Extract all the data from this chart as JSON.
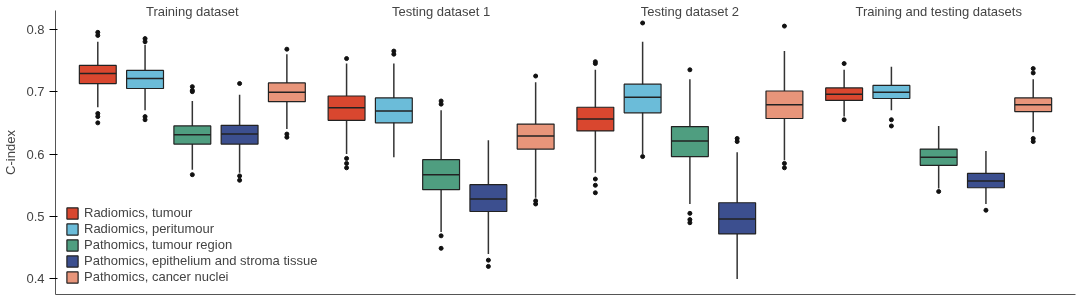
{
  "chart_data": {
    "type": "box",
    "ylabel": "C-index",
    "categories": [
      "Training dataset",
      "Testing dataset 1",
      "Testing dataset 2",
      "Training and testing datasets"
    ],
    "ylim": [
      0.375,
      0.83
    ],
    "yticks": [
      0.4,
      0.5,
      0.6,
      0.7,
      0.8
    ],
    "grid": false,
    "legend": "bottom left",
    "series": [
      {
        "name": "Radiomics, tumour",
        "color": "#d9472f",
        "boxes": [
          {
            "low": 0.675,
            "q1": 0.713,
            "median": 0.729,
            "q3": 0.742,
            "high": 0.78,
            "outliers": [
              0.795,
              0.79,
              0.665,
              0.66,
              0.65
            ]
          },
          {
            "low": 0.6,
            "q1": 0.654,
            "median": 0.674,
            "q3": 0.693,
            "high": 0.745,
            "outliers": [
              0.753,
              0.593,
              0.585,
              0.578
            ]
          },
          {
            "low": 0.57,
            "q1": 0.637,
            "median": 0.656,
            "q3": 0.675,
            "high": 0.735,
            "outliers": [
              0.748,
              0.745,
              0.56,
              0.55,
              0.538
            ]
          },
          {
            "low": 0.66,
            "q1": 0.686,
            "median": 0.696,
            "q3": 0.706,
            "high": 0.735,
            "outliers": [
              0.745,
              0.655
            ]
          }
        ]
      },
      {
        "name": "Radiomics, peritumour",
        "color": "#6bbcd9",
        "boxes": [
          {
            "low": 0.67,
            "q1": 0.705,
            "median": 0.721,
            "q3": 0.734,
            "high": 0.775,
            "outliers": [
              0.785,
              0.78,
              0.66,
              0.655
            ]
          },
          {
            "low": 0.595,
            "q1": 0.65,
            "median": 0.669,
            "q3": 0.69,
            "high": 0.745,
            "outliers": [
              0.765,
              0.76
            ]
          },
          {
            "low": 0.6,
            "q1": 0.666,
            "median": 0.691,
            "q3": 0.712,
            "high": 0.78,
            "outliers": [
              0.81,
              0.596
            ]
          },
          {
            "low": 0.67,
            "q1": 0.689,
            "median": 0.699,
            "q3": 0.71,
            "high": 0.74,
            "outliers": [
              0.655,
              0.645
            ]
          }
        ]
      },
      {
        "name": "Pathomics, tumour region",
        "color": "#4f9e80",
        "boxes": [
          {
            "low": 0.575,
            "q1": 0.616,
            "median": 0.631,
            "q3": 0.645,
            "high": 0.685,
            "outliers": [
              0.708,
              0.702,
              0.7,
              0.567
            ]
          },
          {
            "low": 0.475,
            "q1": 0.543,
            "median": 0.567,
            "q3": 0.591,
            "high": 0.67,
            "outliers": [
              0.685,
              0.68,
              0.469,
              0.449
            ]
          },
          {
            "low": 0.52,
            "q1": 0.596,
            "median": 0.621,
            "q3": 0.644,
            "high": 0.72,
            "outliers": [
              0.735,
              0.505,
              0.495,
              0.49
            ]
          },
          {
            "low": 0.545,
            "q1": 0.582,
            "median": 0.595,
            "q3": 0.608,
            "high": 0.645,
            "outliers": [
              0.54
            ]
          }
        ]
      },
      {
        "name": "Pathomics, epithelium and stroma tissue",
        "color": "#3c4f8f",
        "boxes": [
          {
            "low": 0.57,
            "q1": 0.616,
            "median": 0.632,
            "q3": 0.646,
            "high": 0.695,
            "outliers": [
              0.713,
              0.565,
              0.558
            ]
          },
          {
            "low": 0.44,
            "q1": 0.508,
            "median": 0.528,
            "q3": 0.551,
            "high": 0.622,
            "outliers": [
              0.43,
              0.42
            ]
          },
          {
            "low": 0.4,
            "q1": 0.472,
            "median": 0.496,
            "q3": 0.522,
            "high": 0.603,
            "outliers": [
              0.62,
              0.625
            ]
          },
          {
            "low": 0.52,
            "q1": 0.546,
            "median": 0.557,
            "q3": 0.569,
            "high": 0.605,
            "outliers": [
              0.51
            ]
          }
        ]
      },
      {
        "name": "Pathomics, cancer nuclei",
        "color": "#e8957a",
        "boxes": [
          {
            "low": 0.64,
            "q1": 0.684,
            "median": 0.699,
            "q3": 0.714,
            "high": 0.76,
            "outliers": [
              0.768,
              0.632,
              0.627
            ]
          },
          {
            "low": 0.53,
            "q1": 0.608,
            "median": 0.629,
            "q3": 0.648,
            "high": 0.715,
            "outliers": [
              0.725,
              0.525,
              0.52
            ]
          },
          {
            "low": 0.59,
            "q1": 0.657,
            "median": 0.679,
            "q3": 0.701,
            "high": 0.765,
            "outliers": [
              0.805,
              0.585,
              0.578
            ]
          },
          {
            "low": 0.635,
            "q1": 0.668,
            "median": 0.679,
            "q3": 0.69,
            "high": 0.72,
            "outliers": [
              0.737,
              0.73,
              0.625,
              0.62
            ]
          }
        ]
      }
    ]
  }
}
